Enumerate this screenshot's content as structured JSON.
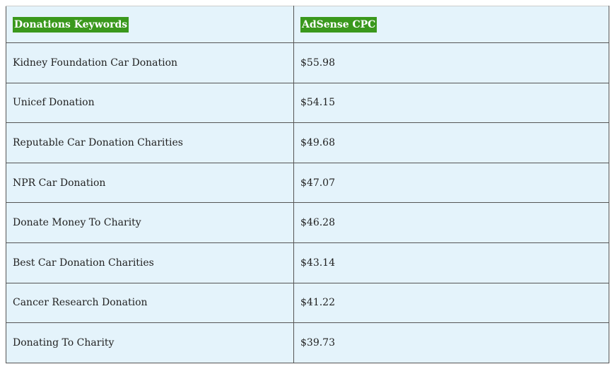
{
  "table": {
    "header": [
      "Donations Keywords",
      "AdSense CPC"
    ],
    "rows": [
      [
        "Kidney Foundation Car Donation",
        "$55.98"
      ],
      [
        "Unicef Donation",
        "$54.15"
      ],
      [
        "Reputable Car Donation Charities",
        "$49.68"
      ],
      [
        "NPR Car Donation",
        "$47.07"
      ],
      [
        "Donate Money To Charity",
        "$46.28"
      ],
      [
        "Best Car Donation Charities",
        "$43.14"
      ],
      [
        "Cancer Research Donation",
        "$41.22"
      ],
      [
        "Donating To Charity",
        "$39.73"
      ]
    ]
  }
}
